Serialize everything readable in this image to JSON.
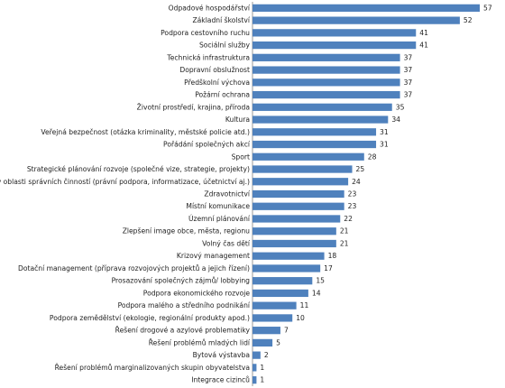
{
  "chart_data": {
    "type": "bar",
    "orientation": "horizontal",
    "color": "#4f81bd",
    "categories": [
      "Odpadové hospodářství",
      "Základní školství",
      "Podpora cestovního ruchu",
      "Sociální služby",
      "Technická infrastruktura",
      "Dopravní obslužnost",
      "Předškolní výchova",
      "Požární ochrana",
      "Životní prostředí, krajina, příroda",
      "Kultura",
      "Veřejná bezpečnost (otázka kriminality, městské policie atd.)",
      "Pořádání společných akcí",
      "Sport",
      "Strategické plánování rozvoje (společné vize, strategie, projekty)",
      "Spolupráce v oblasti správních činností (právní podpora, informatizace, účetnictví aj.)",
      "Zdravotnictví",
      "Místní komunikace",
      "Územní plánování",
      "Zlepšení image obce, města, regionu",
      "Volný čas dětí",
      "Krizový management",
      "Dotační management (příprava rozvojových projektů a jejich řízení)",
      "Prosazování společných zájmů/ lobbying",
      "Podpora ekonomického rozvoje",
      "Podpora malého a středního podnikání",
      "Podpora zemědělství (ekologie, regionální produkty apod.)",
      "Řešení drogové a azylové problematiky",
      "Řešení problémů mladých lidí",
      "Bytová výstavba",
      "Řešení problémů marginalizovaných skupin obyvatelstva",
      "Integrace cizinců"
    ],
    "values": [
      57,
      52,
      41,
      41,
      37,
      37,
      37,
      37,
      35,
      34,
      31,
      31,
      28,
      25,
      24,
      23,
      23,
      22,
      21,
      21,
      18,
      17,
      15,
      14,
      11,
      10,
      7,
      5,
      2,
      1,
      1
    ]
  }
}
